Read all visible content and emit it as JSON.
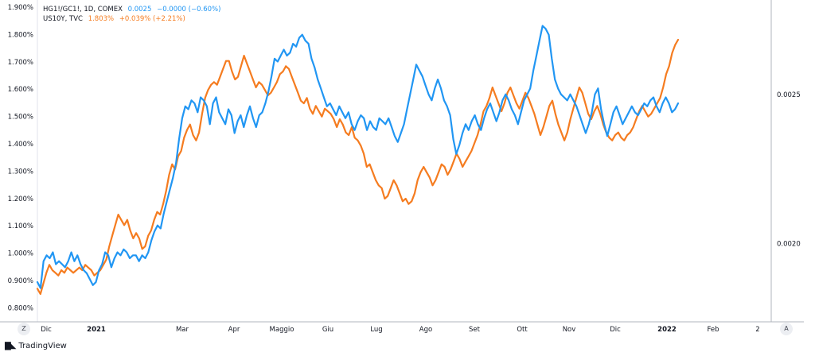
{
  "legend": {
    "copper_gold": {
      "symbol": "HG1!/GC1!, 1D, COMEX",
      "value": "0.0025",
      "change": "−0.0000 (−0.60%)",
      "color": "#2196f3"
    },
    "us10y": {
      "symbol": "US10Y, TVC",
      "value": "1.803%",
      "change": "+0.039% (+2.21%)",
      "color": "#f57c20"
    }
  },
  "bottom_left_button": "Z",
  "bottom_right_button": "A",
  "brand": "TradingView",
  "chart_data": {
    "type": "line",
    "x_labels": [
      "Dic",
      "2021",
      "Mar",
      "Apr",
      "Maggio",
      "Giu",
      "Lug",
      "Ago",
      "Set",
      "Ott",
      "Nov",
      "Dic",
      "2022",
      "Feb",
      "2"
    ],
    "x_labels_bold": [
      "2021",
      "2022"
    ],
    "left_axis": {
      "ticks": [
        "1.900%",
        "1.800%",
        "1.700%",
        "1.600%",
        "1.500%",
        "1.400%",
        "1.300%",
        "1.200%",
        "1.100%",
        "1.000%",
        "0.900%",
        "0.800%"
      ],
      "range": [
        0.75,
        1.92
      ]
    },
    "right_axis": {
      "ticks": [
        "0.0025",
        "0.0020"
      ],
      "range": [
        0.00175,
        0.00279
      ]
    },
    "series": [
      {
        "name": "US10Y, TVC",
        "axis": "left",
        "color": "#f57c20",
        "values": [
          0.86,
          0.84,
          0.88,
          0.92,
          0.95,
          0.93,
          0.92,
          0.91,
          0.93,
          0.92,
          0.94,
          0.93,
          0.92,
          0.93,
          0.94,
          0.93,
          0.95,
          0.94,
          0.93,
          0.91,
          0.92,
          0.93,
          0.95,
          0.97,
          1.02,
          1.06,
          1.1,
          1.14,
          1.12,
          1.1,
          1.12,
          1.08,
          1.05,
          1.07,
          1.05,
          1.01,
          1.02,
          1.06,
          1.08,
          1.12,
          1.15,
          1.14,
          1.18,
          1.23,
          1.29,
          1.33,
          1.31,
          1.36,
          1.38,
          1.43,
          1.46,
          1.48,
          1.44,
          1.42,
          1.45,
          1.52,
          1.58,
          1.61,
          1.63,
          1.64,
          1.63,
          1.66,
          1.69,
          1.72,
          1.72,
          1.68,
          1.65,
          1.66,
          1.7,
          1.74,
          1.71,
          1.68,
          1.65,
          1.62,
          1.64,
          1.63,
          1.61,
          1.59,
          1.6,
          1.62,
          1.64,
          1.67,
          1.68,
          1.7,
          1.69,
          1.66,
          1.63,
          1.6,
          1.57,
          1.56,
          1.58,
          1.54,
          1.52,
          1.55,
          1.53,
          1.51,
          1.54,
          1.53,
          1.52,
          1.5,
          1.47,
          1.5,
          1.48,
          1.45,
          1.44,
          1.47,
          1.43,
          1.42,
          1.4,
          1.37,
          1.32,
          1.33,
          1.3,
          1.27,
          1.25,
          1.24,
          1.2,
          1.21,
          1.24,
          1.27,
          1.25,
          1.22,
          1.19,
          1.2,
          1.18,
          1.19,
          1.22,
          1.27,
          1.3,
          1.32,
          1.3,
          1.28,
          1.25,
          1.27,
          1.3,
          1.33,
          1.32,
          1.29,
          1.31,
          1.34,
          1.37,
          1.35,
          1.32,
          1.34,
          1.36,
          1.38,
          1.41,
          1.44,
          1.48,
          1.53,
          1.55,
          1.58,
          1.62,
          1.59,
          1.56,
          1.53,
          1.56,
          1.6,
          1.62,
          1.59,
          1.56,
          1.54,
          1.57,
          1.6,
          1.58,
          1.55,
          1.52,
          1.48,
          1.44,
          1.47,
          1.51,
          1.55,
          1.57,
          1.52,
          1.48,
          1.45,
          1.42,
          1.45,
          1.5,
          1.54,
          1.58,
          1.62,
          1.6,
          1.56,
          1.52,
          1.5,
          1.53,
          1.55,
          1.52,
          1.48,
          1.45,
          1.43,
          1.42,
          1.44,
          1.45,
          1.43,
          1.42,
          1.44,
          1.45,
          1.47,
          1.5,
          1.53,
          1.55,
          1.53,
          1.51,
          1.52,
          1.54,
          1.56,
          1.58,
          1.62,
          1.67,
          1.7,
          1.75,
          1.78,
          1.8
        ]
      },
      {
        "name": "HG1!/GC1!, 1D, COMEX",
        "axis": "right",
        "color": "#2196f3",
        "values": [
          0.00187,
          0.00185,
          0.00194,
          0.00196,
          0.00195,
          0.00197,
          0.00193,
          0.00194,
          0.00193,
          0.00192,
          0.00194,
          0.00197,
          0.00194,
          0.00196,
          0.00193,
          0.00191,
          0.0019,
          0.00188,
          0.00186,
          0.00187,
          0.00191,
          0.00193,
          0.00197,
          0.00196,
          0.00192,
          0.00195,
          0.00197,
          0.00196,
          0.00198,
          0.00197,
          0.00195,
          0.00196,
          0.00196,
          0.00194,
          0.00196,
          0.00195,
          0.00197,
          0.00201,
          0.00204,
          0.00206,
          0.00205,
          0.0021,
          0.00214,
          0.00218,
          0.00222,
          0.00227,
          0.00235,
          0.00242,
          0.00246,
          0.00245,
          0.00248,
          0.00247,
          0.00244,
          0.00249,
          0.00248,
          0.00246,
          0.0024,
          0.00247,
          0.00249,
          0.00244,
          0.00242,
          0.0024,
          0.00245,
          0.00243,
          0.00237,
          0.00241,
          0.00243,
          0.00239,
          0.00243,
          0.00246,
          0.00242,
          0.00239,
          0.00243,
          0.00244,
          0.00247,
          0.00251,
          0.00256,
          0.00262,
          0.00261,
          0.00263,
          0.00265,
          0.00263,
          0.00264,
          0.00267,
          0.00266,
          0.00269,
          0.0027,
          0.00268,
          0.00267,
          0.00262,
          0.00259,
          0.00255,
          0.00252,
          0.00249,
          0.00246,
          0.00247,
          0.00245,
          0.00243,
          0.00246,
          0.00244,
          0.00242,
          0.00244,
          0.0024,
          0.00238,
          0.00241,
          0.00243,
          0.00242,
          0.00238,
          0.00241,
          0.00239,
          0.00238,
          0.00242,
          0.00241,
          0.0024,
          0.00242,
          0.00239,
          0.00236,
          0.00234,
          0.00237,
          0.0024,
          0.00245,
          0.0025,
          0.00255,
          0.0026,
          0.00258,
          0.00256,
          0.00253,
          0.0025,
          0.00248,
          0.00252,
          0.00255,
          0.00252,
          0.00248,
          0.00246,
          0.00243,
          0.00235,
          0.0023,
          0.00233,
          0.00237,
          0.0024,
          0.00238,
          0.00241,
          0.00243,
          0.0024,
          0.00238,
          0.00242,
          0.00245,
          0.00247,
          0.00244,
          0.00241,
          0.00244,
          0.00248,
          0.0025,
          0.00248,
          0.00245,
          0.00243,
          0.0024,
          0.00244,
          0.00248,
          0.0025,
          0.00252,
          0.00258,
          0.00263,
          0.00268,
          0.00273,
          0.00272,
          0.0027,
          0.00262,
          0.00255,
          0.00252,
          0.0025,
          0.00249,
          0.00248,
          0.0025,
          0.00248,
          0.00246,
          0.00243,
          0.0024,
          0.00237,
          0.0024,
          0.00244,
          0.0025,
          0.00252,
          0.00245,
          0.0024,
          0.00236,
          0.0024,
          0.00244,
          0.00246,
          0.00243,
          0.0024,
          0.00242,
          0.00244,
          0.00246,
          0.00244,
          0.00243,
          0.00245,
          0.00247,
          0.00246,
          0.00248,
          0.00249,
          0.00246,
          0.00244,
          0.00247,
          0.00249,
          0.00247,
          0.00244,
          0.00245,
          0.00247
        ]
      }
    ],
    "grid": false,
    "legend_position": "top-left"
  }
}
